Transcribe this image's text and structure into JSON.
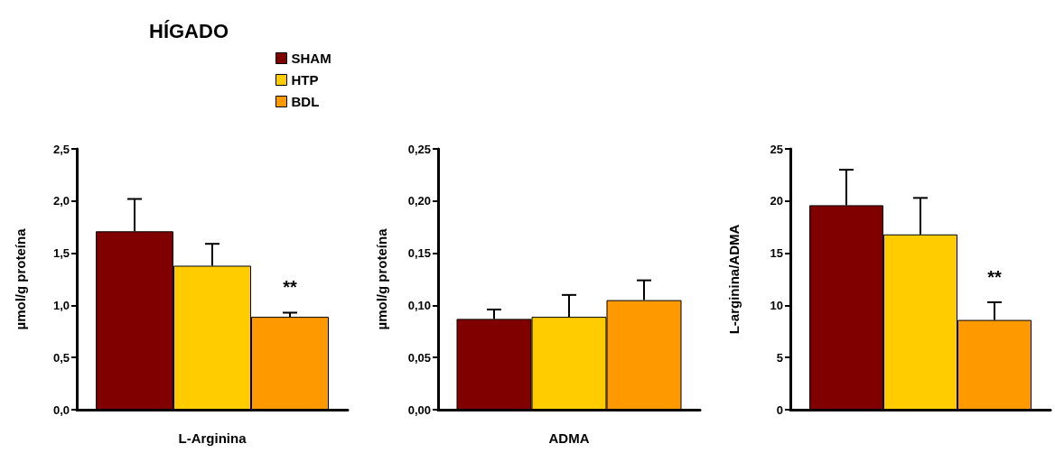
{
  "chart_data": [
    {
      "type": "bar",
      "title": "HÍGADO",
      "xlabel": "L-Arginina",
      "ylabel": "µmol/g proteína",
      "categories": [
        null
      ],
      "legend": "top",
      "grid": false,
      "series": [
        {
          "name": "SHAM",
          "color": "#800000",
          "values": [
            1.71
          ],
          "errors": [
            [
              1.71,
              2.02
            ]
          ]
        },
        {
          "name": "HTP",
          "color": "#ffcc00",
          "values": [
            1.38
          ],
          "errors": [
            [
              1.38,
              1.59
            ]
          ]
        },
        {
          "name": "BDL",
          "color": "#ff9900",
          "values": [
            0.89
          ],
          "errors": [
            [
              0.89,
              0.93
            ]
          ]
        }
      ],
      "ylim": [
        0,
        2.5
      ],
      "yticks": [
        {
          "value": 0,
          "label": "0,0"
        },
        {
          "value": 0.5,
          "label": "0,5"
        },
        {
          "value": 1,
          "label": "1,0"
        },
        {
          "value": 1.5,
          "label": "1,5"
        },
        {
          "value": 2,
          "label": "2,0"
        },
        {
          "value": 2.5,
          "label": "2,5"
        }
      ],
      "annotations": [
        "**"
      ]
    },
    {
      "type": "bar",
      "xlabel": "ADMA",
      "ylabel": "µmol/g proteína",
      "categories": [
        null
      ],
      "grid": false,
      "series": [
        {
          "color": "#800000",
          "values": [
            0.087
          ],
          "errors": [
            [
              0.087,
              0.096
            ]
          ]
        },
        {
          "color": "#ffcc00",
          "values": [
            0.089
          ],
          "errors": [
            [
              0.089,
              0.11
            ]
          ]
        },
        {
          "color": "#ff9900",
          "values": [
            0.105
          ],
          "errors": [
            [
              0.105,
              0.124
            ]
          ]
        }
      ],
      "ylim": [
        0,
        0.25
      ],
      "yticks": [
        {
          "value": 0,
          "label": "0,00"
        },
        {
          "value": 0.05,
          "label": "0,05"
        },
        {
          "value": 0.1,
          "label": "0,10"
        },
        {
          "value": 0.15,
          "label": "0,15"
        },
        {
          "value": 0.2,
          "label": "0,20"
        },
        {
          "value": 0.25,
          "label": "0,25"
        }
      ]
    },
    {
      "type": "bar",
      "ylabel": "L-arginina/ADMA",
      "categories": [
        null
      ],
      "grid": false,
      "series": [
        {
          "color": "#800000",
          "values": [
            19.6
          ],
          "errors": [
            [
              19.6,
              23.0
            ]
          ]
        },
        {
          "color": "#ffcc00",
          "values": [
            16.8
          ],
          "errors": [
            [
              16.8,
              20.3
            ]
          ]
        },
        {
          "color": "#ff9900",
          "values": [
            8.6
          ],
          "errors": [
            [
              8.6,
              10.3
            ]
          ]
        }
      ],
      "ylim": [
        0,
        25
      ],
      "yticks": [
        0,
        5,
        10,
        15,
        20,
        25
      ],
      "annotations": [
        "**"
      ]
    }
  ]
}
